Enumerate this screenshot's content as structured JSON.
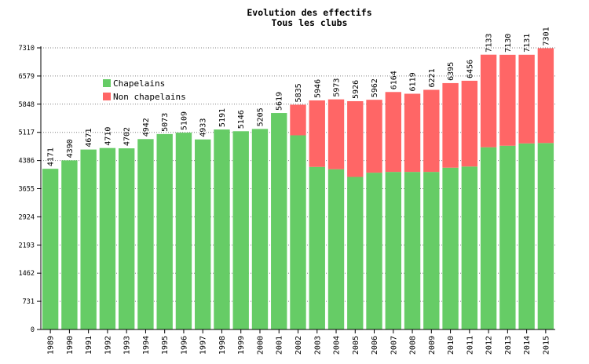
{
  "chart_data": {
    "type": "bar",
    "stacked": true,
    "title": "Evolution des effectifs",
    "subtitle": "Tous les clubs",
    "xlabel": "",
    "ylabel": "",
    "ylim": [
      0,
      7310
    ],
    "yticks": [
      0,
      731,
      1462,
      2193,
      2924,
      3655,
      4386,
      5117,
      5848,
      6579,
      7310
    ],
    "grid": true,
    "legend_position": "top-left",
    "categories": [
      "1989",
      "1990",
      "1991",
      "1992",
      "1993",
      "1994",
      "1995",
      "1996",
      "1997",
      "1998",
      "1999",
      "2000",
      "2001",
      "2002",
      "2003",
      "2004",
      "2005",
      "2006",
      "2007",
      "2008",
      "2009",
      "2010",
      "2011",
      "2012",
      "2013",
      "2014",
      "2015"
    ],
    "series": [
      {
        "name": "Chapelains",
        "color": "#66cc66",
        "values": [
          4171,
          4390,
          4671,
          4710,
          4702,
          4942,
          5073,
          5109,
          4933,
          5191,
          5146,
          5205,
          5619,
          5040,
          4220,
          4160,
          3960,
          4070,
          4090,
          4090,
          4090,
          4200,
          4230,
          4730,
          4770,
          4830,
          4840
        ]
      },
      {
        "name": "Non chapelains",
        "color": "#ff6666",
        "values": [
          0,
          0,
          0,
          0,
          0,
          0,
          0,
          0,
          0,
          0,
          0,
          0,
          0,
          795,
          1726,
          1813,
          1966,
          1892,
          2074,
          2029,
          2131,
          2195,
          2226,
          2403,
          2360,
          2301,
          2461
        ]
      }
    ],
    "totals": [
      4171,
      4390,
      4671,
      4710,
      4702,
      4942,
      5073,
      5109,
      4933,
      5191,
      5146,
      5205,
      5619,
      5835,
      5946,
      5973,
      5926,
      5962,
      6164,
      6119,
      6221,
      6395,
      6456,
      7133,
      7130,
      7131,
      7301
    ]
  }
}
